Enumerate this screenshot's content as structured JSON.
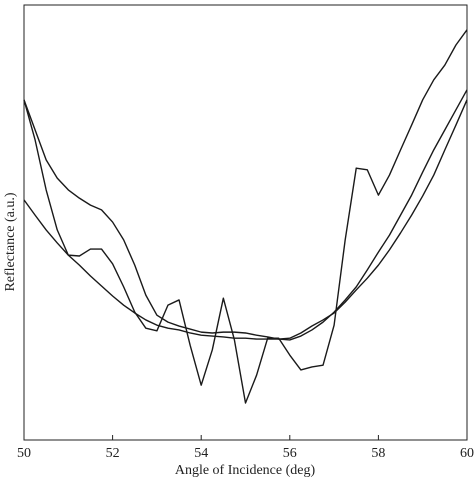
{
  "chart_data": {
    "type": "line",
    "x_label": "Angle of Incidence (deg)",
    "y_label": "Reflectance (a.u.)",
    "x": [
      50,
      50.25,
      50.5,
      50.75,
      51,
      51.25,
      51.5,
      51.75,
      52,
      52.25,
      52.5,
      52.75,
      53,
      53.25,
      53.5,
      53.75,
      54,
      54.25,
      54.5,
      54.75,
      55,
      55.25,
      55.5,
      55.75,
      56,
      56.25,
      56.5,
      56.75,
      57,
      57.25,
      57.5,
      57.75,
      58,
      58.25,
      58.5,
      58.75,
      59,
      59.25,
      59.5,
      59.75,
      60
    ],
    "series": [
      {
        "color": "#1a1a1a",
        "values": [
          78.2,
          69.0,
          57.5,
          48.3,
          42.5,
          42.3,
          43.9,
          43.9,
          40.5,
          35.2,
          29.4,
          25.7,
          25.1,
          31.0,
          32.2,
          21.8,
          12.6,
          20.7,
          32.6,
          23.0,
          8.5,
          14.9,
          23.4,
          23.4,
          19.5,
          16.1,
          16.8,
          17.2,
          26.4,
          46.0,
          62.5,
          62.1,
          56.3,
          60.9,
          66.7,
          72.4,
          78.2,
          82.8,
          86.2,
          90.8,
          94.3
        ]
      },
      {
        "color": "#1a1a1a",
        "values": [
          78.2,
          71.3,
          64.4,
          60.2,
          57.5,
          55.6,
          54.0,
          52.9,
          50.1,
          46.0,
          40.2,
          33.3,
          28.7,
          27.1,
          26.2,
          25.5,
          24.8,
          24.6,
          24.8,
          24.8,
          24.6,
          24.1,
          23.7,
          23.2,
          23.0,
          23.9,
          25.3,
          27.1,
          29.4,
          32.2,
          35.2,
          39.1,
          43.2,
          47.1,
          51.7,
          56.3,
          61.6,
          66.7,
          71.3,
          75.9,
          80.5
        ]
      },
      {
        "color": "#1a1a1a",
        "values": [
          55.2,
          51.7,
          48.3,
          45.3,
          42.5,
          40.2,
          37.7,
          35.4,
          33.1,
          31.0,
          29.2,
          27.6,
          26.4,
          25.7,
          25.3,
          24.6,
          24.1,
          23.9,
          23.7,
          23.4,
          23.4,
          23.2,
          23.2,
          23.2,
          23.4,
          24.6,
          26.2,
          27.6,
          29.2,
          31.7,
          34.5,
          37.2,
          40.2,
          43.7,
          47.6,
          51.7,
          56.1,
          60.9,
          66.7,
          72.4,
          78.2
        ]
      }
    ],
    "xlim": [
      50,
      60
    ],
    "xticks": [
      50,
      52,
      54,
      56,
      58,
      60
    ],
    "ylim": [
      0,
      100
    ]
  }
}
